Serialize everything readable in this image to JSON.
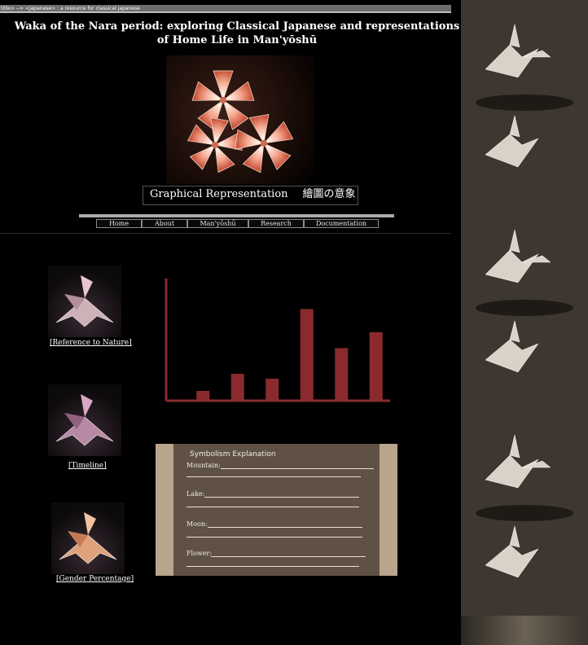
{
  "window": {
    "tab_text": "title> --> <japanese> : a resource for classical japanese"
  },
  "header": {
    "title_line1": "Waka of the Nara period: exploring Classical Japanese and representations",
    "title_line2": "of Home Life in Man'yōshū",
    "page_heading_en": "Graphical Representation",
    "page_heading_jp": "繪圖の意象"
  },
  "nav": {
    "items": [
      {
        "label": "Home"
      },
      {
        "label": "About"
      },
      {
        "label": "Man'yōshū"
      },
      {
        "label": "Research"
      },
      {
        "label": "Documentation"
      }
    ]
  },
  "sidebar": {
    "links": [
      {
        "label": "[Reference to Nature]"
      },
      {
        "label": "[Timeline]"
      },
      {
        "label": "[Gender Percentage]"
      }
    ]
  },
  "chart_data": {
    "type": "bar",
    "categories": [
      "",
      "",
      "",
      "",
      "",
      ""
    ],
    "values": [
      8,
      22,
      18,
      75,
      43,
      56
    ],
    "ylim": [
      0,
      100
    ],
    "title": "",
    "xlabel": "",
    "ylabel": "",
    "grid": false,
    "bar_color": "#8b2a2e"
  },
  "symbolism": {
    "title": "Symbolism Explanation",
    "rows": [
      {
        "label": "Mountain:"
      },
      {
        "label": "Lake:"
      },
      {
        "label": "Moon:"
      },
      {
        "label": "Flower:"
      }
    ]
  },
  "colors": {
    "background": "#000000",
    "accent": "#8b2a2e",
    "panel": "#5f5245"
  }
}
